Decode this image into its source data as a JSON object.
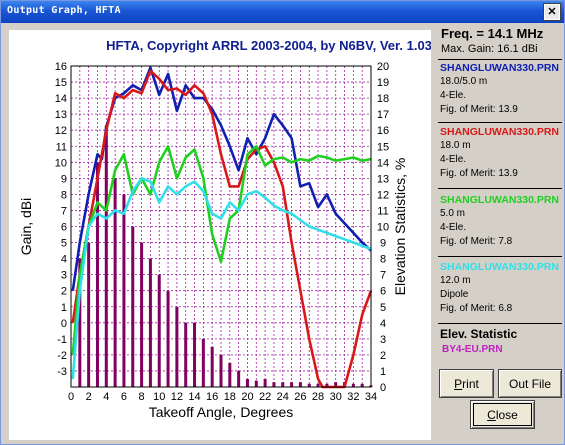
{
  "window": {
    "title": "Output Graph, HFTA",
    "close_glyph": "✕"
  },
  "chart_data": {
    "type": "line",
    "title": "HFTA, Copyright ARRL 2003-2004, by N6BV, Ver. 1.03",
    "xlabel": "Takeoff Angle, Degrees",
    "ylabel": "Gain, dBi",
    "y2label": "Elevation Statistics, %",
    "xlim": [
      0,
      34
    ],
    "ylim": [
      -4,
      16
    ],
    "y2lim": [
      0,
      20
    ],
    "xticks": [
      "0",
      "2",
      "4",
      "6",
      "8",
      "10",
      "12",
      "14",
      "16",
      "18",
      "20",
      "22",
      "24",
      "26",
      "28",
      "30",
      "32",
      "34"
    ],
    "yticks": [
      "16",
      "15",
      "14",
      "13",
      "12",
      "11",
      "10",
      "9",
      "8",
      "7",
      "6",
      "5",
      "4",
      "3",
      "2",
      "1",
      "0",
      "-1",
      "-2",
      "-3"
    ],
    "y2ticks": [
      "20",
      "19",
      "18",
      "17",
      "16",
      "15",
      "14",
      "13",
      "12",
      "11",
      "10",
      "9",
      "8",
      "7",
      "6",
      "5",
      "4",
      "3",
      "2",
      "1",
      "0"
    ],
    "grid": true,
    "series": [
      {
        "name": "SHANGLUWAN330.PRN",
        "color": "#1020b0",
        "x": [
          0.2,
          1,
          2,
          3,
          3.5,
          4,
          5,
          6,
          7,
          8,
          9,
          10,
          11,
          12,
          13,
          14,
          15,
          16,
          17,
          18,
          19,
          20,
          21,
          22,
          23,
          24,
          25,
          26,
          27,
          28,
          29,
          30,
          31,
          32,
          33,
          34
        ],
        "y": [
          2.0,
          5.0,
          8.0,
          10.5,
          10.2,
          12.2,
          14.0,
          14.3,
          14.8,
          14.5,
          15.9,
          14.2,
          15.5,
          13.2,
          14.8,
          14.0,
          14.0,
          13.3,
          12.3,
          11.0,
          9.5,
          11.5,
          10.5,
          11.5,
          13.0,
          12.3,
          11.5,
          8.5,
          8.7,
          7.2,
          8.0,
          6.8,
          6.2,
          5.6,
          5.0,
          4.5
        ]
      },
      {
        "name": "SHANGLUWAN330.PRN",
        "color": "#d81818",
        "x": [
          0.2,
          1,
          2,
          3,
          4,
          5,
          6,
          7,
          8,
          9,
          10,
          11,
          12,
          13,
          14,
          15,
          16,
          17,
          18,
          19,
          20,
          21,
          22,
          23,
          24,
          25,
          26,
          27,
          28,
          28.5,
          30,
          31,
          32,
          33,
          34
        ],
        "y": [
          0.0,
          3.0,
          6.0,
          9.0,
          12.0,
          14.3,
          14.0,
          14.5,
          14.3,
          15.7,
          15.2,
          14.5,
          14.6,
          14.2,
          14.8,
          14.3,
          13.0,
          10.5,
          8.5,
          8.5,
          10.2,
          10.8,
          11.0,
          10.0,
          8.5,
          5.0,
          2.0,
          -1.0,
          -3.5,
          -4.0,
          -4.0,
          -4.0,
          -2.0,
          0.5,
          2.0
        ]
      },
      {
        "name": "SHANGLUWAN330.PRN",
        "color": "#20d020",
        "x": [
          0.2,
          1,
          2,
          3,
          4,
          5,
          6,
          7,
          8,
          9,
          10,
          11,
          12,
          13,
          14,
          15,
          16,
          17,
          18,
          19,
          20,
          21,
          22,
          23,
          24,
          25,
          26,
          27,
          28,
          29,
          30,
          31,
          32,
          33,
          34
        ],
        "y": [
          -2.0,
          3.0,
          6.0,
          7.5,
          7.0,
          9.5,
          10.5,
          8.0,
          9.0,
          8.0,
          10.0,
          11.0,
          9.0,
          10.3,
          10.8,
          9.0,
          5.5,
          3.8,
          6.5,
          7.0,
          10.5,
          11.0,
          9.8,
          10.2,
          10.3,
          10.0,
          10.2,
          10.1,
          10.4,
          10.3,
          10.1,
          10.2,
          10.3,
          10.1,
          10.2
        ]
      },
      {
        "name": "SHANGLUWAN330.PRN",
        "color": "#30e0e8",
        "x": [
          0.2,
          1,
          2,
          3,
          4,
          5,
          6,
          7,
          8,
          9,
          10,
          11,
          12,
          13,
          14,
          15,
          16,
          17,
          18,
          19,
          20,
          21,
          22,
          23,
          24,
          25,
          26,
          27,
          28,
          29,
          30,
          31,
          32,
          33,
          34
        ],
        "y": [
          -3.5,
          2.0,
          6.0,
          6.8,
          6.5,
          7.0,
          6.8,
          8.2,
          9.0,
          8.8,
          7.5,
          8.5,
          8.0,
          8.5,
          8.8,
          8.2,
          6.8,
          6.5,
          7.5,
          7.0,
          8.0,
          8.2,
          7.8,
          7.3,
          7.0,
          6.8,
          6.4,
          6.0,
          5.8,
          5.6,
          5.4,
          5.2,
          5.0,
          4.8,
          4.6
        ]
      }
    ],
    "elevation_bars": {
      "color": "#800060",
      "x": [
        1,
        2,
        3,
        4,
        5,
        6,
        7,
        8,
        9,
        10,
        11,
        12,
        13,
        14,
        15,
        16,
        17,
        18,
        19,
        20,
        21,
        22,
        23,
        24,
        25,
        26,
        27,
        28,
        29,
        30,
        31,
        32,
        33,
        34
      ],
      "values": [
        8,
        9,
        14,
        16.3,
        13,
        12,
        10,
        9,
        8,
        7,
        6,
        5,
        4,
        4,
        3,
        2.5,
        2,
        1.5,
        1,
        0.5,
        0.4,
        0.5,
        0.3,
        0.3,
        0.3,
        0.3,
        0.2,
        0.2,
        0.2,
        0.3,
        0.3,
        0.2,
        0.2,
        0.1
      ]
    }
  },
  "panel": {
    "freq": "Freq. = 14.1 MHz",
    "max_gain": "Max. Gain: 16.1 dBi",
    "antennas": [
      {
        "name": "SHANGLUWAN330.PRN",
        "color": "#1020b0",
        "line1": "18.0/5.0 m",
        "line2": "4-Ele.",
        "merit": "Fig. of Merit:  13.9"
      },
      {
        "name": "SHANGLUWAN330.PRN",
        "color": "#d81818",
        "line1": "18.0 m",
        "line2": "4-Ele.",
        "merit": "Fig. of Merit:  13.9"
      },
      {
        "name": "SHANGLUWAN330.PRN",
        "color": "#20d020",
        "line1": "5.0 m",
        "line2": "4-Ele.",
        "merit": "Fig. of Merit:  7.8"
      },
      {
        "name": "SHANGLUWAN330.PRN",
        "color": "#30e0e8",
        "line1": "12.0 m",
        "line2": "Dipole",
        "merit": "Fig. of Merit:  6.8"
      }
    ],
    "elev_header": "Elev. Statistic",
    "elev_file": "BY4-EU.PRN",
    "buttons": {
      "print": "Print",
      "outfile": "Out File",
      "close": "Close"
    }
  }
}
